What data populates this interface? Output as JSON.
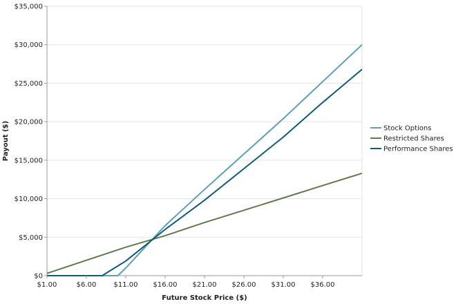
{
  "chart_data": {
    "type": "line",
    "xlabel": "Future Stock Price ($)",
    "ylabel": "Payout ($)",
    "xlim": [
      1,
      41
    ],
    "ylim": [
      0,
      35000
    ],
    "x_ticks": [
      1,
      6,
      11,
      16,
      21,
      26,
      31,
      36
    ],
    "x_tick_labels": [
      "$1.00",
      "$6.00",
      "$11.00",
      "$16.00",
      "$21.00",
      "$26.00",
      "$31.00",
      "$36.00"
    ],
    "y_ticks": [
      0,
      5000,
      10000,
      15000,
      20000,
      25000,
      30000,
      35000
    ],
    "y_tick_labels": [
      "$0",
      "$5,000",
      "$10,000",
      "$15,000",
      "$20,000",
      "$25,000",
      "$30,000",
      "$35,000"
    ],
    "grid": true,
    "legend_position": "right",
    "series": [
      {
        "name": "Stock Options",
        "color": "#5a9fb5",
        "x": [
          1,
          10,
          11,
          16,
          21,
          26,
          31,
          36,
          41
        ],
        "y": [
          0,
          0,
          1000,
          6500,
          11200,
          15800,
          20400,
          25200,
          30000
        ]
      },
      {
        "name": "Restricted Shares",
        "color": "#5f7a4a",
        "x": [
          1,
          6,
          11,
          16,
          21,
          26,
          31,
          36,
          41
        ],
        "y": [
          300,
          2000,
          3700,
          5200,
          6900,
          8500,
          10100,
          11700,
          13300
        ]
      },
      {
        "name": "Performance Shares",
        "color": "#0e5a78",
        "x": [
          1,
          8,
          11,
          16,
          21,
          26,
          31,
          36,
          41
        ],
        "y": [
          0,
          0,
          1900,
          6000,
          9800,
          13900,
          18000,
          22500,
          26800
        ]
      }
    ]
  }
}
